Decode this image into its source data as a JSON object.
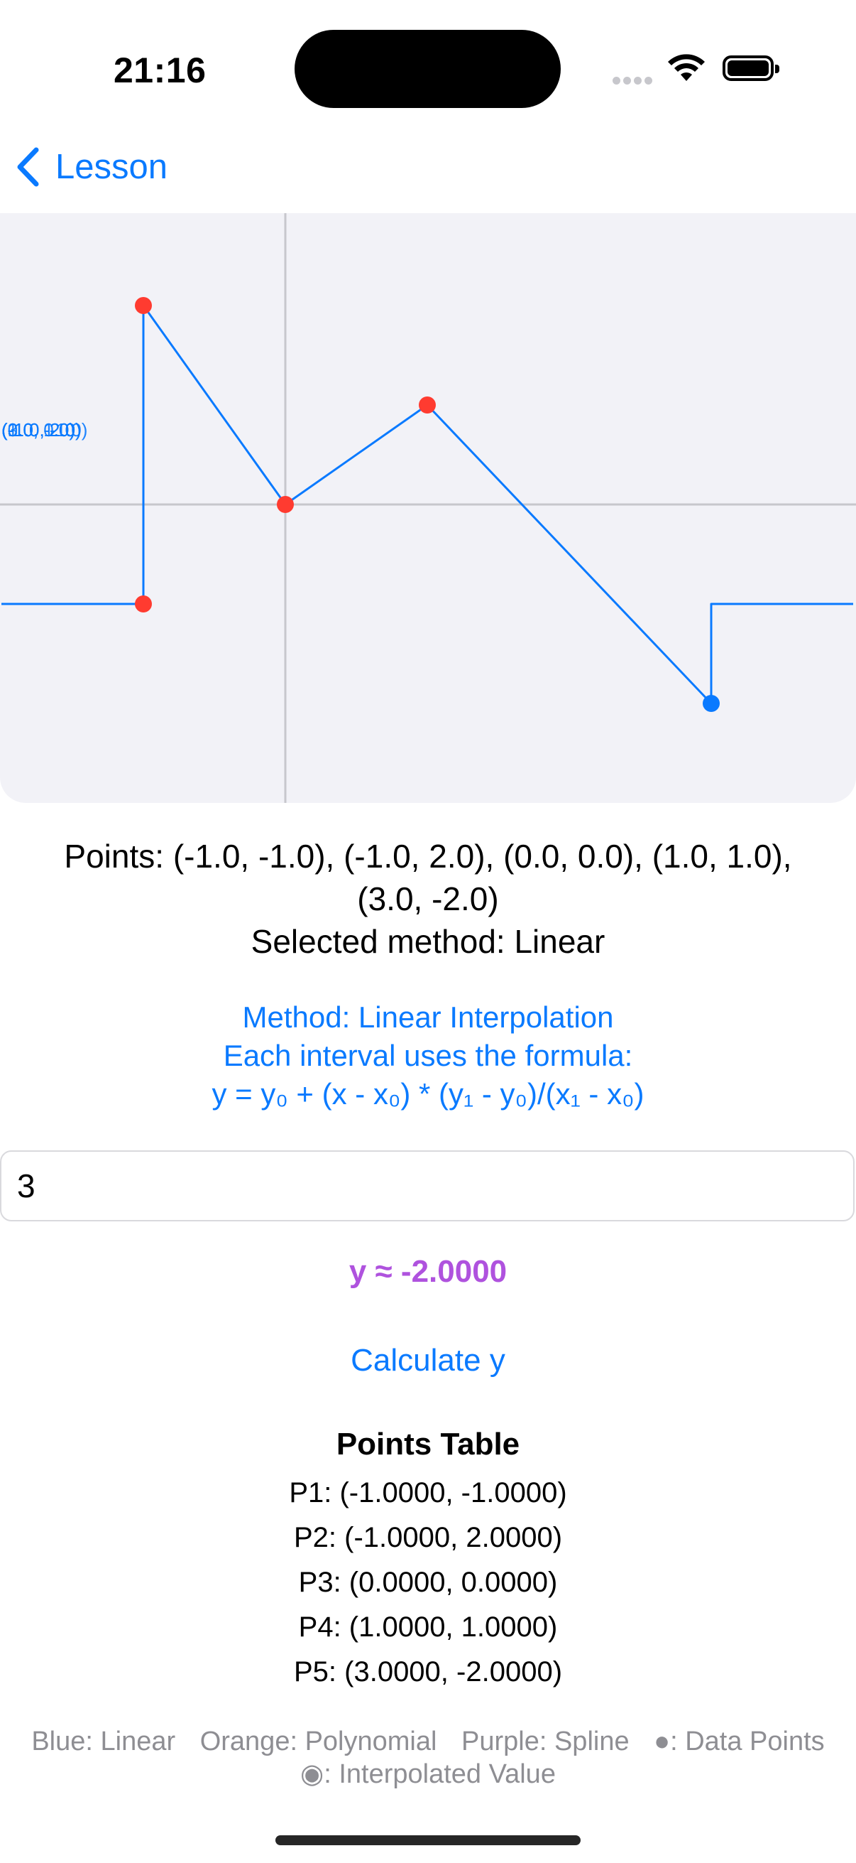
{
  "status_bar": {
    "time": "21:16"
  },
  "nav": {
    "back_label": "Lesson"
  },
  "graph": {
    "point_labels": [
      "(-1.0, -1.0)",
      "(-1.0, 2.0)",
      "(0.0, 0.0)",
      "(1.0, 1.0)",
      "(3.0, -2.0)"
    ]
  },
  "chart_data": {
    "type": "line",
    "title": "",
    "xlabel": "",
    "ylabel": "",
    "xlim": [
      -2,
      4
    ],
    "ylim": [
      -3,
      3
    ],
    "grid": false,
    "series": [
      {
        "x": [
          -2,
          -1,
          -1,
          0,
          1,
          3,
          3,
          4
        ],
        "y": [
          -1,
          -1,
          2,
          0,
          1,
          -2,
          -1,
          -1
        ],
        "color": "#0a7aff"
      }
    ],
    "data_points": {
      "x": [
        -1,
        -1,
        0,
        1
      ],
      "y": [
        -1,
        2,
        0,
        1
      ],
      "color": "#ff3b30"
    },
    "interpolated_point": {
      "x": 3,
      "y": -2,
      "color": "#0a7aff"
    }
  },
  "info": {
    "points_line1": "Points: (-1.0, -1.0), (-1.0, 2.0), (0.0, 0.0), (1.0, 1.0),",
    "points_line2": "(3.0, -2.0)",
    "selected_method": "Selected method: Linear"
  },
  "method": {
    "line1": "Method: Linear Interpolation",
    "line2": "Each interval uses the formula:",
    "line3": "y = y₀ + (x - x₀) * (y₁ - y₀)/(x₁ - x₀)"
  },
  "input": {
    "x_value": "3"
  },
  "result": {
    "text": "y ≈ -2.0000"
  },
  "calculate": {
    "label": "Calculate y"
  },
  "points_table": {
    "title": "Points Table",
    "rows": [
      "P1: (-1.0000, -1.0000)",
      "P2: (-1.0000, 2.0000)",
      "P3: (0.0000, 0.0000)",
      "P4: (1.0000, 1.0000)",
      "P5: (3.0000, -2.0000)"
    ]
  },
  "legend": {
    "blue": "Blue: Linear",
    "orange": "Orange: Polynomial",
    "purple": "Purple: Spline",
    "data_points": "●: Data Points",
    "interpolated": "◉: Interpolated Value"
  }
}
